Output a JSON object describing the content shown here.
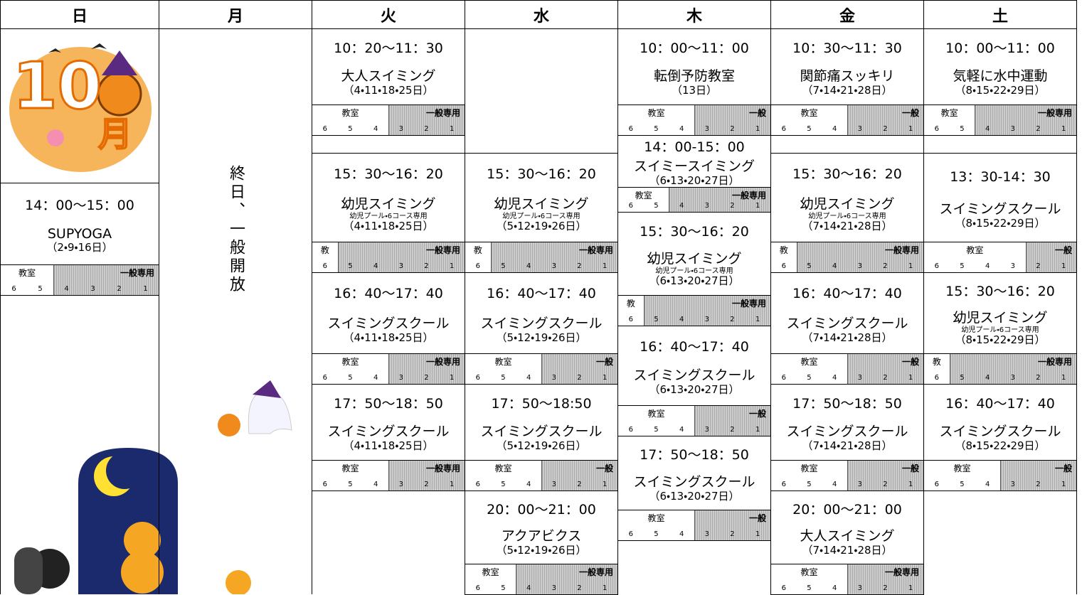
{
  "header": [
    "日",
    "月",
    "火",
    "水",
    "木",
    "金",
    "土"
  ],
  "badge": {
    "number": "10",
    "unit": "月"
  },
  "lanes": [
    6,
    5,
    4,
    3,
    2,
    1
  ],
  "days": [
    {
      "blocks": [
        {
          "time": "14：00～15：00",
          "name": "SUPYOGA",
          "dates": "（2・9・16日）",
          "room_label": "教室",
          "general_label": "一般専用",
          "classroom_lanes": 2
        }
      ]
    },
    {
      "note": "終日、一般開放",
      "blocks": []
    },
    {
      "blocks": [
        {
          "time": "10：20～11：30",
          "name": "大人スイミング",
          "dates": "（4・11・18・25日）",
          "room_label": "教室",
          "general_label": "一般専用",
          "classroom_lanes": 3
        },
        {
          "time": "15：30～16：20",
          "name": "幼児スイミング",
          "sub": "幼児プール・6コース専用",
          "dates": "（4・11・18・25日）",
          "room_label": "教",
          "general_label": "一般専用",
          "classroom_lanes": 1
        },
        {
          "time": "16：40～17：40",
          "name": "スイミングスクール",
          "dates": "（4・11・18・25日）",
          "room_label": "教室",
          "general_label": "一般専用",
          "classroom_lanes": 3
        },
        {
          "time": "17：50～18：50",
          "name": "スイミングスクール",
          "dates": "（4・11・18・25日）",
          "room_label": "教室",
          "general_label": "一般専用",
          "classroom_lanes": 3
        }
      ]
    },
    {
      "blocks": [
        {
          "time": "15：30～16：20",
          "name": "幼児スイミング",
          "sub": "幼児プール・6コース専用",
          "dates": "（5・12・19・26日）",
          "room_label": "教",
          "general_label": "一般専用",
          "classroom_lanes": 1
        },
        {
          "time": "16：40～17：40",
          "name": "スイミングスクール",
          "dates": "（5・12・19・26日）",
          "room_label": "教室",
          "general_label": "一般",
          "classroom_lanes": 3
        },
        {
          "time": "17：50～18:50",
          "name": "スイミングスクール",
          "dates": "（5・12・19・26日）",
          "room_label": "教室",
          "general_label": "一般",
          "classroom_lanes": 3
        },
        {
          "time": "20：00～21：00",
          "name": "アクアビクス",
          "dates": "（5・12・19・26日）",
          "room_label": "教室",
          "general_label": "一般専用",
          "classroom_lanes": 2
        }
      ]
    },
    {
      "blocks": [
        {
          "time": "10：00～11：00",
          "name": "転倒予防教室",
          "dates": "（13日）",
          "room_label": "教室",
          "general_label": "一般",
          "classroom_lanes": 3
        },
        {
          "time": "14：00-15：00",
          "name": "スイミースイミング",
          "dates": "（6・13・20・27日）",
          "room_label": "教室",
          "general_label": "一般専用",
          "classroom_lanes": 2
        },
        {
          "time": "15：30～16：20",
          "name": "幼児スイミング",
          "sub": "幼児プール・6コース専用",
          "dates": "（6・13・20・27日）",
          "room_label": "教",
          "general_label": "一般専用",
          "classroom_lanes": 1
        },
        {
          "time": "16：40～17：40",
          "name": "スイミングスクール",
          "dates": "（6・13・20・27日）",
          "room_label": "教室",
          "general_label": "一般",
          "classroom_lanes": 3
        },
        {
          "time": "17：50～18：50",
          "name": "スイミングスクール",
          "dates": "（6・13・20・27日）",
          "room_label": "教室",
          "general_label": "一般",
          "classroom_lanes": 3
        }
      ]
    },
    {
      "blocks": [
        {
          "time": "10：30～11：30",
          "name": "関節痛スッキリ",
          "dates": "（7・14・21・28日）",
          "room_label": "教室",
          "general_label": "一般",
          "classroom_lanes": 3
        },
        {
          "time": "15：30～16：20",
          "name": "幼児スイミング",
          "sub": "幼児プール・6コース専用",
          "dates": "（7・14・21・28日）",
          "room_label": "教",
          "general_label": "一般専用",
          "classroom_lanes": 1
        },
        {
          "time": "16：40～17：40",
          "name": "スイミングスクール",
          "dates": "（7・14・21・28日）",
          "room_label": "教室",
          "general_label": "一般",
          "classroom_lanes": 3
        },
        {
          "time": "17：50～18：50",
          "name": "スイミングスクール",
          "dates": "（7・14・21・28日）",
          "room_label": "教室",
          "general_label": "一般",
          "classroom_lanes": 3
        },
        {
          "time": "20：00～21：00",
          "name": "大人スイミング",
          "dates": "（7・14・21・28日）",
          "room_label": "教室",
          "general_label": "一般専用",
          "classroom_lanes": 3
        }
      ]
    },
    {
      "blocks": [
        {
          "time": "10：00～11：00",
          "name": "気軽に水中運動",
          "dates": "（8・15・22・29日）",
          "room_label": "教室",
          "general_label": "一般専用",
          "classroom_lanes": 2
        },
        {
          "time": "13：30-14：30",
          "name": "スイミングスクール",
          "dates": "（8・15・22・29日）",
          "room_label": "教室",
          "general_label": "一般",
          "classroom_lanes": 4
        },
        {
          "time": "15：30～16：20",
          "name": "幼児スイミング",
          "sub": "幼児プール・6コース専用",
          "dates": "（8・15・22・29日）",
          "room_label": "教",
          "general_label": "一般専用",
          "classroom_lanes": 1
        },
        {
          "time": "16：40～17：40",
          "name": "スイミングスクール",
          "dates": "（8・15・22・29日）",
          "room_label": "教室",
          "general_label": "一般",
          "classroom_lanes": 3
        }
      ]
    }
  ]
}
